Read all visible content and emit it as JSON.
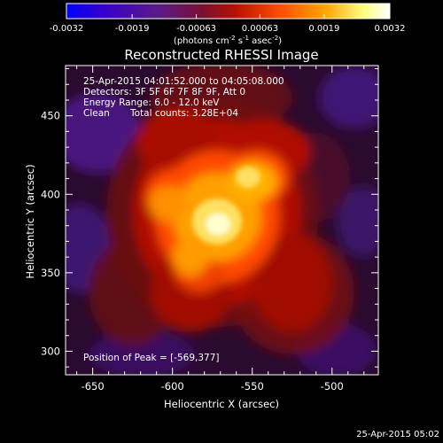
{
  "colorbar": {
    "ticks": [
      "-0.0032",
      "-0.0019",
      "-0.00063",
      "0.00063",
      "0.0019",
      "0.0032"
    ],
    "tick_values": [
      -0.0032,
      -0.0019,
      -0.00063,
      0.00063,
      0.0019,
      0.0032
    ],
    "range": [
      -0.0032,
      0.0032
    ],
    "units_label": "(photons cm",
    "units_exp1": "-2",
    "units_mid": " s",
    "units_exp2": "-1",
    "units_end": " asec",
    "units_exp3": "-2",
    "units_close": ")",
    "colors": [
      "#0000ff",
      "#3a00cc",
      "#5a1a8a",
      "#7a1030",
      "#b81000",
      "#ff4d00",
      "#ffa500",
      "#ffff80",
      "#ffffff"
    ]
  },
  "title": "Reconstructed RHESSI Image",
  "info": {
    "time_range": "25-Apr-2015 04:01:52.000 to 04:05:08.000",
    "detectors": "Detectors: 3F 5F 6F 7F 8F 9F, Att 0",
    "energy": "Energy Range: 6.0 - 12.0 keV",
    "clean_label": "Clean",
    "total_counts": "Total counts: 3.28E+04"
  },
  "peak_text": "Position of Peak = [-569,377]",
  "peak": {
    "x": -569,
    "y": 377
  },
  "axes": {
    "xlabel": "Heliocentric X (arcsec)",
    "ylabel": "Heliocentric Y (arcsec)",
    "xlim": [
      -667,
      -471
    ],
    "ylim": [
      285,
      482
    ],
    "xticks": [
      "-650",
      "-600",
      "-550",
      "-500"
    ],
    "xtick_values": [
      -650,
      -600,
      -550,
      -500
    ],
    "yticks": [
      "300",
      "350",
      "400",
      "450"
    ],
    "ytick_values": [
      300,
      350,
      400,
      450
    ]
  },
  "footer_timestamp": "25-Apr-2015 05:02"
}
